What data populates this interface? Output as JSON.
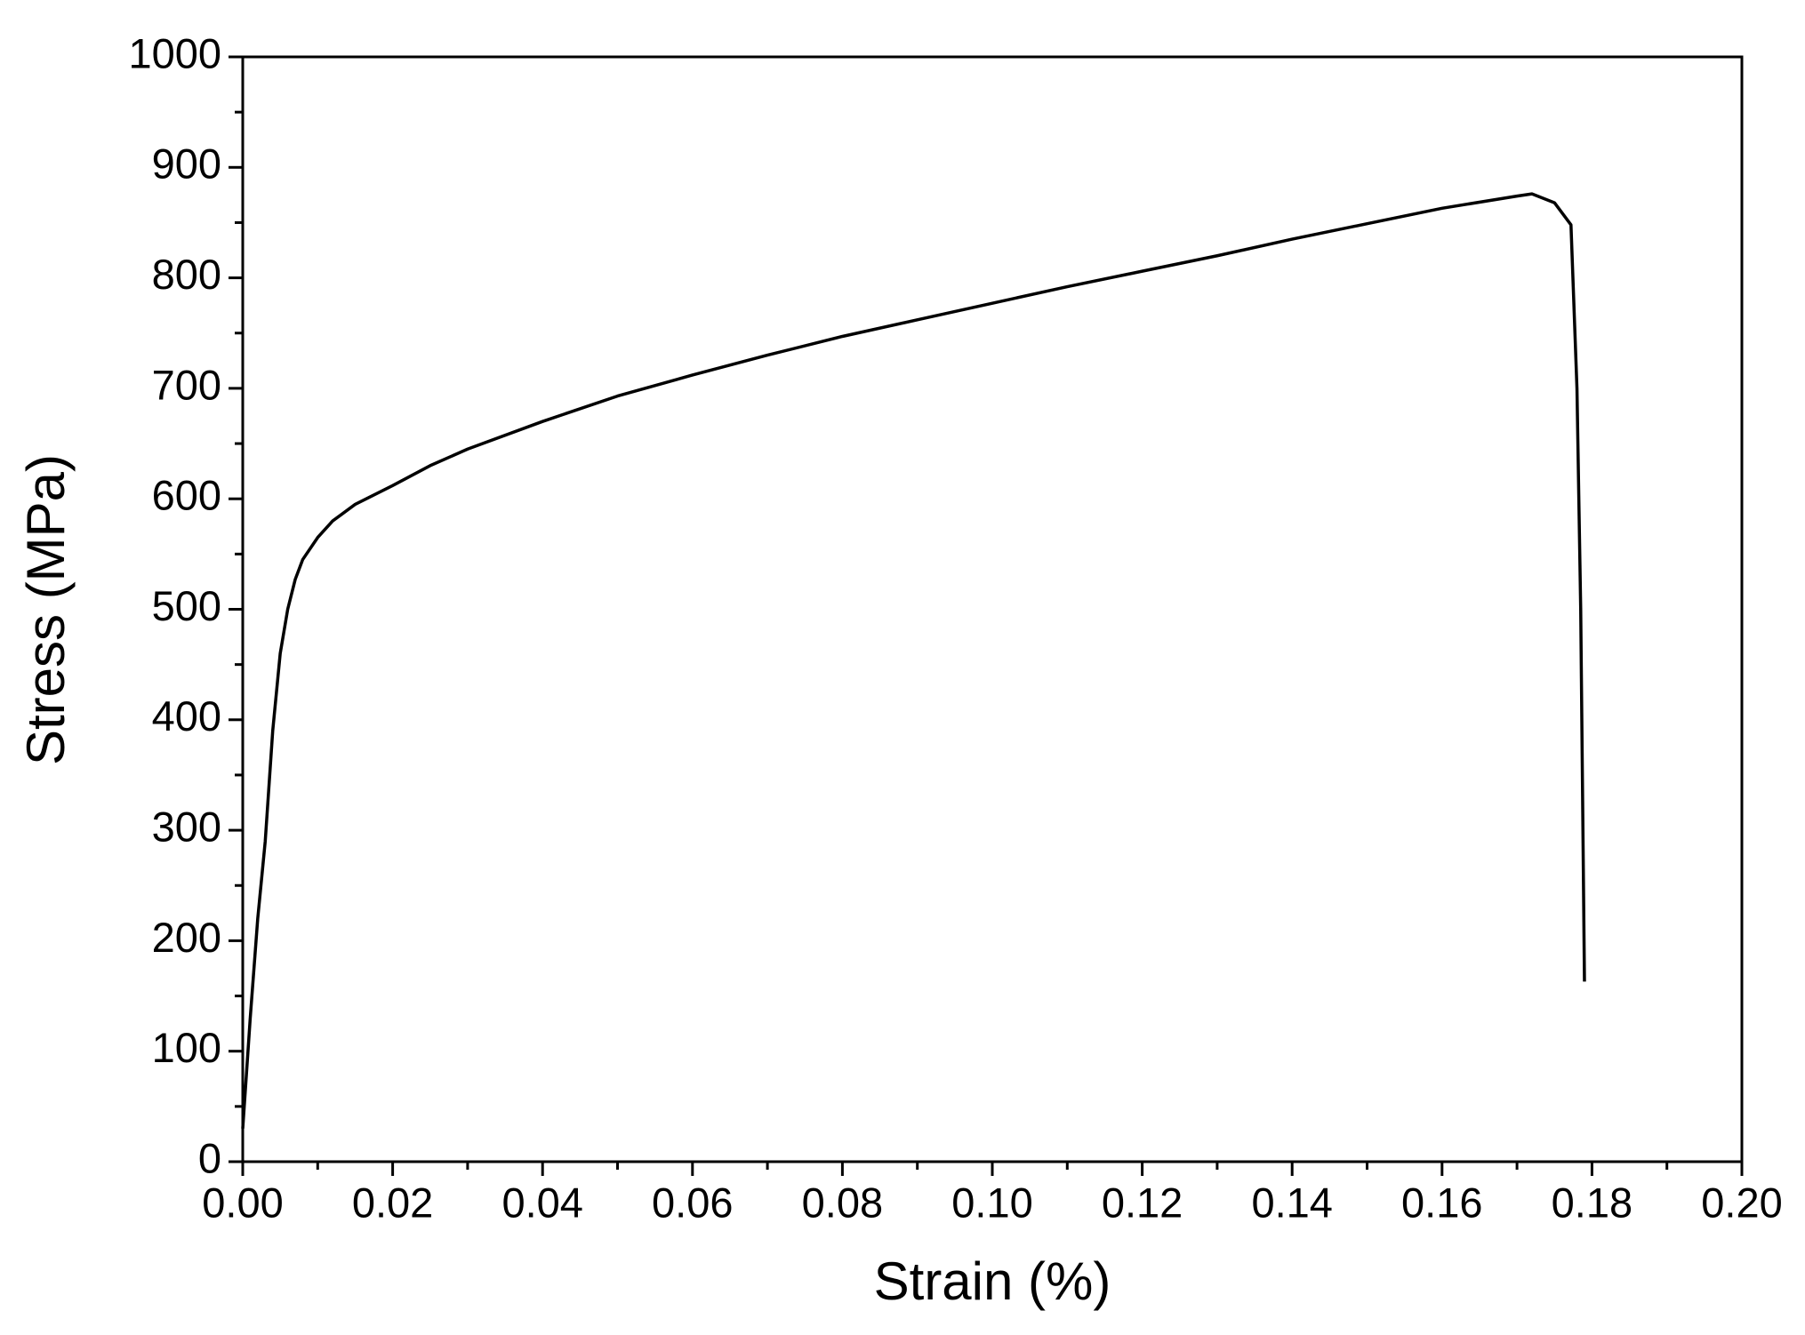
{
  "chart_data": {
    "type": "line",
    "x_label": "Strain (%)",
    "y_label": "Stress  (MPa)",
    "x": [
      0,
      0.001,
      0.002,
      0.003,
      0.004,
      0.005,
      0.006,
      0.007,
      0.008,
      0.01,
      0.012,
      0.015,
      0.02,
      0.025,
      0.03,
      0.04,
      0.05,
      0.06,
      0.07,
      0.08,
      0.09,
      0.1,
      0.11,
      0.12,
      0.13,
      0.14,
      0.15,
      0.16,
      0.17,
      0.172,
      0.175,
      0.1772,
      0.178,
      0.1785,
      0.179
    ],
    "values": [
      30,
      130,
      220,
      290,
      390,
      460,
      500,
      527,
      545,
      565,
      580,
      595,
      612,
      630,
      645,
      670,
      693,
      712,
      730,
      747,
      762,
      777,
      792,
      806,
      820,
      835,
      849,
      863,
      874,
      876,
      868,
      848,
      700,
      500,
      163
    ],
    "color": "#000000",
    "xlim": [
      0,
      0.2
    ],
    "ylim": [
      0,
      1000
    ],
    "xticks": [
      {
        "value": 0,
        "label": "0.00"
      },
      {
        "value": 0.02,
        "label": "0.02"
      },
      {
        "value": 0.04,
        "label": "0.04"
      },
      {
        "value": 0.06,
        "label": "0.06"
      },
      {
        "value": 0.08,
        "label": "0.08"
      },
      {
        "value": 0.1,
        "label": "0.10"
      },
      {
        "value": 0.12,
        "label": "0.12"
      },
      {
        "value": 0.14,
        "label": "0.14"
      },
      {
        "value": 0.16,
        "label": "0.16"
      },
      {
        "value": 0.18,
        "label": "0.18"
      },
      {
        "value": 0.2,
        "label": "0.20"
      }
    ],
    "yticks": [
      0,
      100,
      200,
      300,
      400,
      500,
      600,
      700,
      800,
      900,
      1000
    ],
    "xminorticks": [
      0.01,
      0.03,
      0.05,
      0.07,
      0.09,
      0.11,
      0.13,
      0.15,
      0.17,
      0.19
    ],
    "yminorticks": [
      50,
      150,
      250,
      350,
      450,
      550,
      650,
      750,
      850,
      950
    ],
    "grid": false
  }
}
